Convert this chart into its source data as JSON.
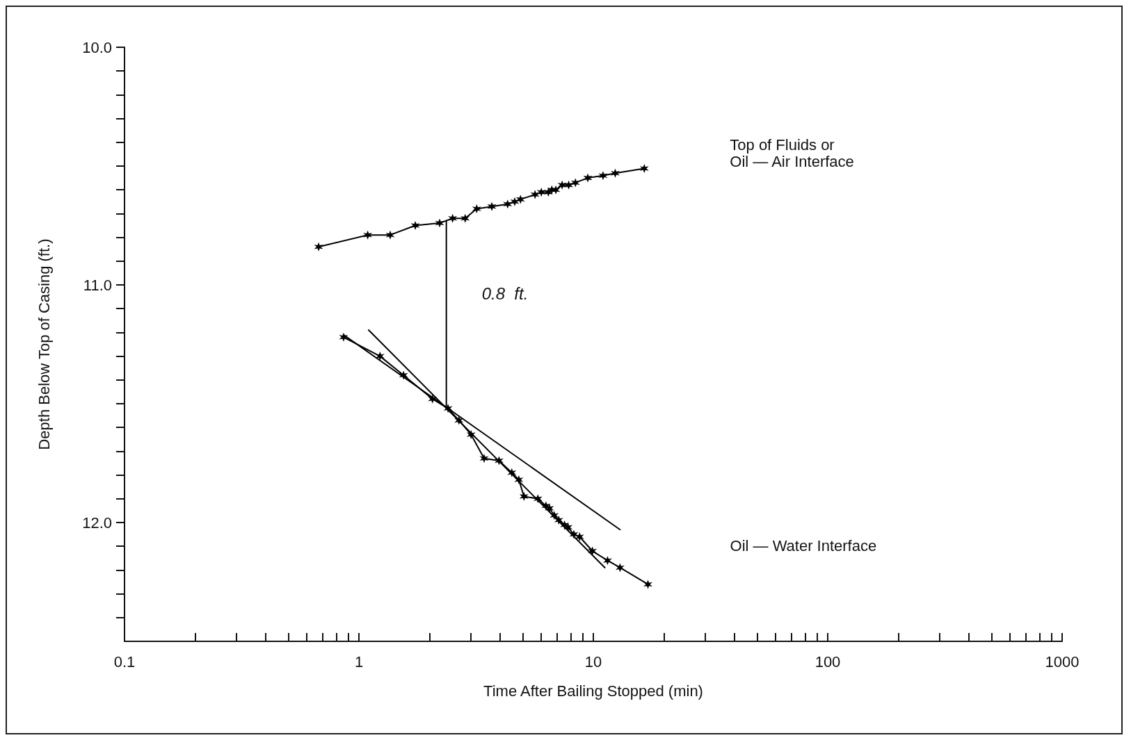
{
  "chart_data": {
    "type": "line",
    "xlabel": "Time After Bailing Stopped (min)",
    "ylabel": "Depth Below Top of Casing (ft.)",
    "log": "x",
    "marker": "cross",
    "line_style": "solid",
    "grid": false,
    "xlim": [
      0.1,
      1000
    ],
    "xticks": [
      0.1,
      {
        "value": 0.2,
        "label": null
      },
      {
        "value": 0.3,
        "label": null
      },
      {
        "value": 0.4,
        "label": null
      },
      {
        "value": 0.5,
        "label": null
      },
      {
        "value": 0.6,
        "label": null
      },
      {
        "value": 0.7,
        "label": null
      },
      {
        "value": 0.8,
        "label": null
      },
      {
        "value": 0.9,
        "label": null
      },
      1,
      {
        "value": 2,
        "label": null
      },
      {
        "value": 3,
        "label": null
      },
      {
        "value": 4,
        "label": null
      },
      {
        "value": 5,
        "label": null
      },
      {
        "value": 6,
        "label": null
      },
      {
        "value": 7,
        "label": null
      },
      {
        "value": 8,
        "label": null
      },
      {
        "value": 9,
        "label": null
      },
      10,
      {
        "value": 20,
        "label": null
      },
      {
        "value": 30,
        "label": null
      },
      {
        "value": 40,
        "label": null
      },
      {
        "value": 50,
        "label": null
      },
      {
        "value": 60,
        "label": null
      },
      {
        "value": 70,
        "label": null
      },
      {
        "value": 80,
        "label": null
      },
      {
        "value": 90,
        "label": null
      },
      100,
      {
        "value": 200,
        "label": null
      },
      {
        "value": 300,
        "label": null
      },
      {
        "value": 400,
        "label": null
      },
      {
        "value": 500,
        "label": null
      },
      {
        "value": 600,
        "label": null
      },
      {
        "value": 700,
        "label": null
      },
      {
        "value": 800,
        "label": null
      },
      {
        "value": 900,
        "label": null
      },
      1000
    ],
    "ylim": [
      12.5,
      10.0
    ],
    "yticks": [
      {
        "value": 10,
        "label": "10.0"
      },
      {
        "value": 10.1,
        "label": null
      },
      {
        "value": 10.2,
        "label": null
      },
      {
        "value": 10.3,
        "label": null
      },
      {
        "value": 10.4,
        "label": null
      },
      {
        "value": 10.5,
        "label": null
      },
      {
        "value": 10.6,
        "label": null
      },
      {
        "value": 10.7,
        "label": null
      },
      {
        "value": 10.8,
        "label": null
      },
      {
        "value": 10.9,
        "label": null
      },
      {
        "value": 11,
        "label": "11.0"
      },
      {
        "value": 11.1,
        "label": null
      },
      {
        "value": 11.2,
        "label": null
      },
      {
        "value": 11.3,
        "label": null
      },
      {
        "value": 11.4,
        "label": null
      },
      {
        "value": 11.5,
        "label": null
      },
      {
        "value": 11.6,
        "label": null
      },
      {
        "value": 11.7,
        "label": null
      },
      {
        "value": 11.8,
        "label": null
      },
      {
        "value": 11.9,
        "label": null
      },
      {
        "value": 12,
        "label": "12.0"
      },
      {
        "value": 12.1,
        "label": null
      },
      {
        "value": 12.2,
        "label": null
      },
      {
        "value": 12.3,
        "label": null
      },
      {
        "value": 12.4,
        "label": null
      }
    ],
    "annotations": [
      "0.8  ft."
    ],
    "series": [
      {
        "name": "Top of Fluids or\nOil — Air Interface",
        "color": "#000000",
        "x": [
          0.673,
          1.09,
          1.36,
          1.74,
          2.21,
          2.51,
          2.84,
          3.18,
          3.69,
          4.31,
          4.62,
          4.89,
          5.64,
          6.0,
          6.43,
          6.65,
          6.92,
          7.36,
          7.85,
          8.39,
          9.47,
          11.0,
          12.4,
          16.5
        ],
        "values": [
          10.84,
          10.79,
          10.79,
          10.75,
          10.74,
          10.72,
          10.72,
          10.68,
          10.67,
          10.66,
          10.65,
          10.64,
          10.62,
          10.61,
          10.61,
          10.6,
          10.6,
          10.58,
          10.58,
          10.57,
          10.55,
          10.54,
          10.53,
          10.51
        ]
      },
      {
        "name": "Oil — Water Interface",
        "color": "#000000",
        "x": [
          0.86,
          1.23,
          1.55,
          2.06,
          2.4,
          2.67,
          3.01,
          3.42,
          3.96,
          4.49,
          4.81,
          5.06,
          5.8,
          6.28,
          6.5,
          6.81,
          7.12,
          7.54,
          7.8,
          8.26,
          8.74,
          9.91,
          11.5,
          13.0,
          17.1
        ],
        "values": [
          11.22,
          11.3,
          11.38,
          11.48,
          11.52,
          11.57,
          11.63,
          11.73,
          11.74,
          11.79,
          11.82,
          11.89,
          11.9,
          11.93,
          11.94,
          11.97,
          11.99,
          12.01,
          12.02,
          12.05,
          12.06,
          12.12,
          12.16,
          12.19,
          12.26
        ]
      },
      {
        "type": "line",
        "marker": "none",
        "color": "#000000",
        "x": [
          0.86,
          13.0
        ],
        "values": [
          11.21,
          12.03
        ]
      },
      {
        "type": "line",
        "marker": "none",
        "color": "#000000",
        "x": [
          1.1,
          11.2
        ],
        "values": [
          11.19,
          12.19
        ]
      },
      {
        "type": "line",
        "marker": "none",
        "color": "#000000",
        "x": [
          2.36,
          2.36
        ],
        "values": [
          10.73,
          11.52
        ]
      }
    ]
  }
}
